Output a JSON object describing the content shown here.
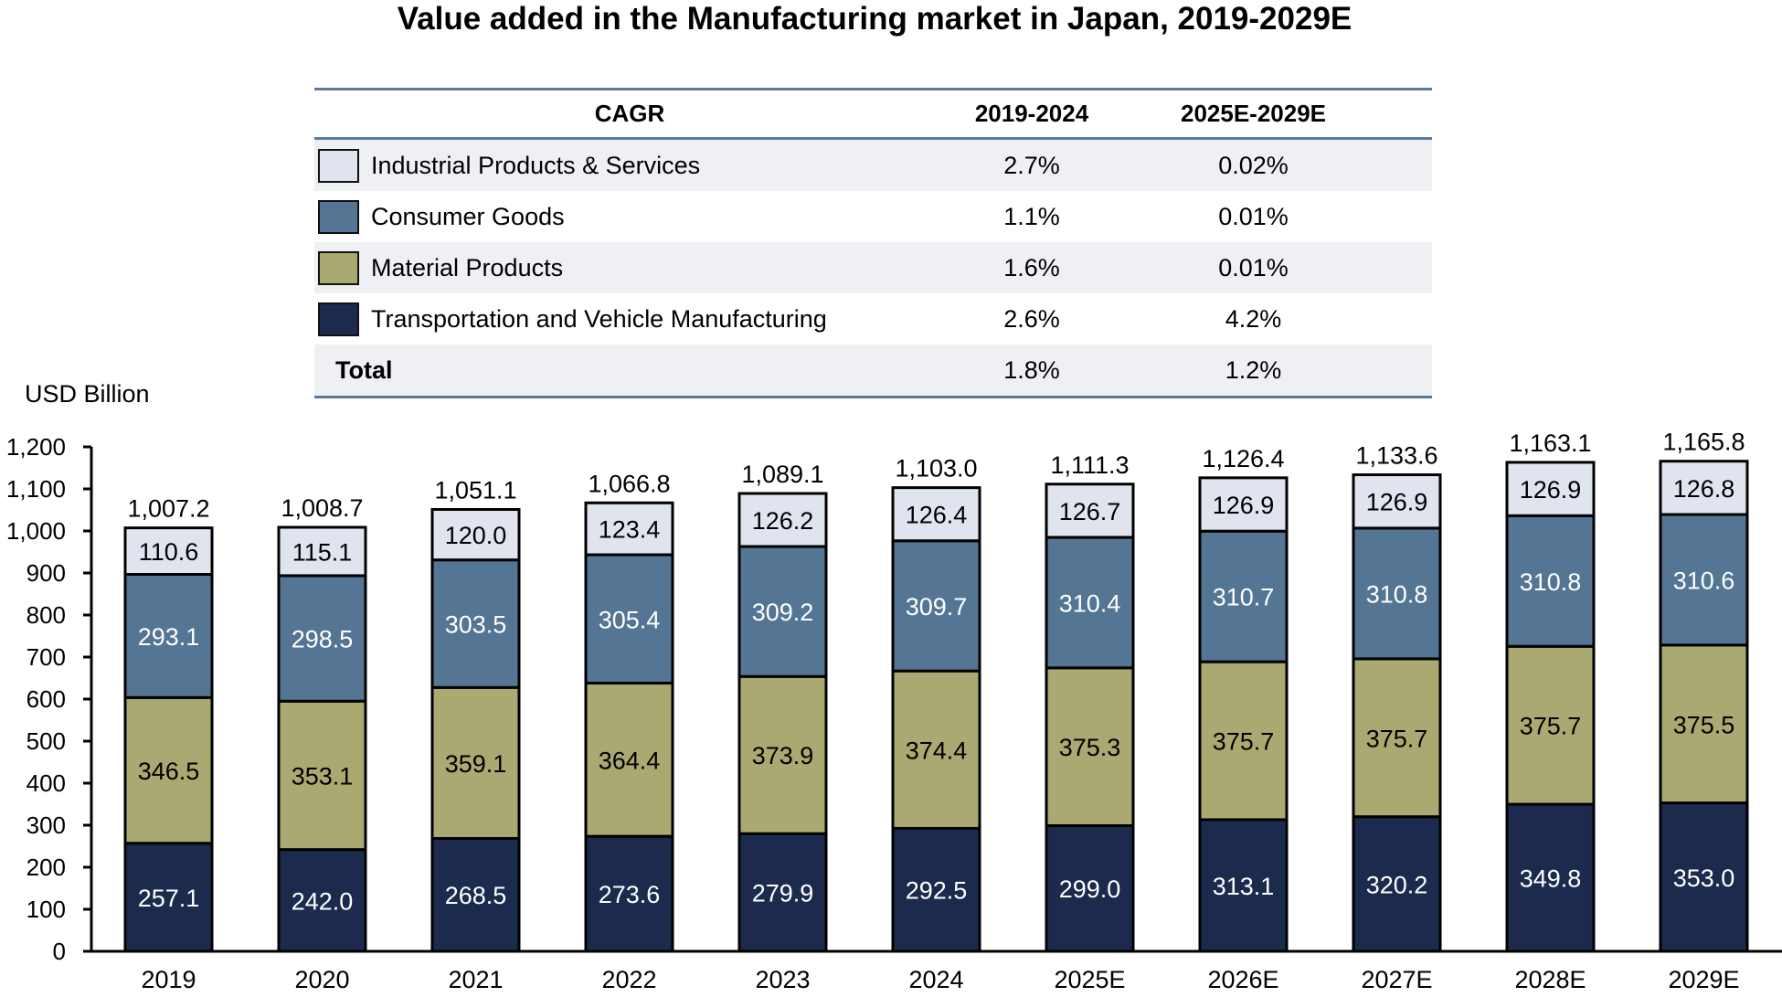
{
  "title": "Value added in the Manufacturing market in Japan, 2019-2029E",
  "cagr_table": {
    "header": {
      "label": "CAGR",
      "col1": "2019-2024",
      "col2": "2025E-2029E"
    },
    "rows": [
      {
        "label": "Industrial Products & Services",
        "color": "#dfe4ee",
        "col1": "2.7%",
        "col2": "0.02%"
      },
      {
        "label": "Consumer Goods",
        "color": "#547593",
        "col1": "1.1%",
        "col2": "0.01%"
      },
      {
        "label": "Material Products",
        "color": "#aaa971",
        "col1": "1.6%",
        "col2": "0.01%"
      },
      {
        "label": "Transportation and Vehicle Manufacturing",
        "color": "#1c2b4d",
        "col1": "2.6%",
        "col2": "4.2%"
      }
    ],
    "total": {
      "label": "Total",
      "col1": "1.8%",
      "col2": "1.2%"
    }
  },
  "chart_data": {
    "type": "bar",
    "stacked": true,
    "title": "Value added in the Manufacturing market in Japan, 2019-2029E",
    "xlabel": "",
    "ylabel": "USD Billion",
    "ylim": [
      0,
      1200
    ],
    "yticks": [
      0,
      100,
      200,
      300,
      400,
      500,
      600,
      700,
      800,
      900,
      1000,
      1100,
      1200
    ],
    "ytick_labels": [
      "0",
      "100",
      "200",
      "300",
      "400",
      "500",
      "600",
      "700",
      "800",
      "900",
      "1,000",
      "1,100",
      "1,200"
    ],
    "grid": false,
    "legend": "table-top",
    "categories": [
      "2019",
      "2020",
      "2021",
      "2022",
      "2023",
      "2024",
      "2025E",
      "2026E",
      "2027E",
      "2028E",
      "2029E"
    ],
    "series": [
      {
        "name": "Transportation and Vehicle Manufacturing",
        "color": "#1c2b4d",
        "label_color": "#ffffff",
        "values": [
          257.1,
          242.0,
          268.5,
          273.6,
          279.9,
          292.5,
          299.0,
          313.1,
          320.2,
          349.8,
          353.0
        ]
      },
      {
        "name": "Material Products",
        "color": "#aaa971",
        "label_color": "#000000",
        "values": [
          346.5,
          353.1,
          359.1,
          364.4,
          373.9,
          374.4,
          375.3,
          375.7,
          375.7,
          375.7,
          375.5
        ]
      },
      {
        "name": "Consumer Goods",
        "color": "#547593",
        "label_color": "#ffffff",
        "values": [
          293.1,
          298.5,
          303.5,
          305.4,
          309.2,
          309.7,
          310.4,
          310.7,
          310.8,
          310.8,
          310.6
        ]
      },
      {
        "name": "Industrial Products & Services",
        "color": "#dfe4ee",
        "label_color": "#000000",
        "values": [
          110.6,
          115.1,
          120.0,
          123.4,
          126.2,
          126.4,
          126.7,
          126.9,
          126.9,
          126.9,
          126.8
        ]
      }
    ],
    "totals": [
      "1,007.2",
      "1,008.7",
      "1,051.1",
      "1,066.8",
      "1,089.1",
      "1,103.0",
      "1,111.3",
      "1,126.4",
      "1,133.6",
      "1,163.1",
      "1,165.8"
    ]
  }
}
